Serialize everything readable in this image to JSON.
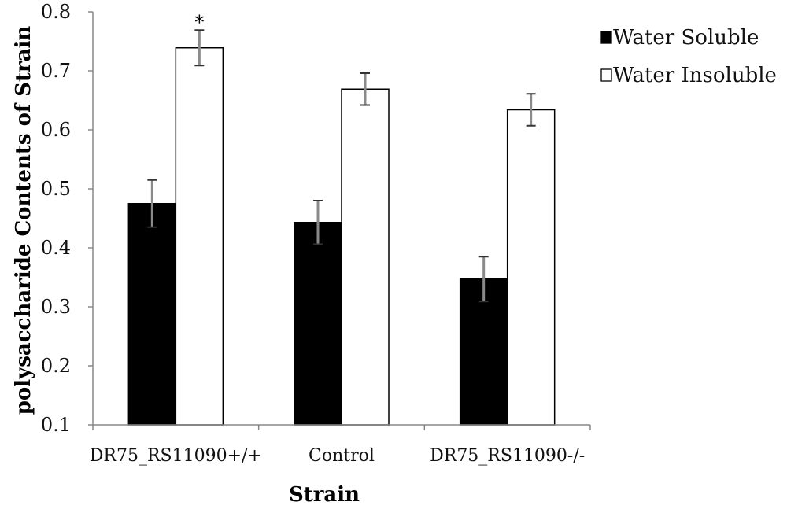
{
  "chart_data": {
    "type": "bar",
    "title": "",
    "xlabel": "Strain",
    "ylabel": "polysaccharide Contents of Strain",
    "ylim": [
      0.1,
      0.8
    ],
    "yticks": [
      "0.1",
      "0.2",
      "0.3",
      "0.4",
      "0.5",
      "0.6",
      "0.7",
      "0.8"
    ],
    "categories": [
      "DR75_RS11090+/+",
      "Control",
      "DR75_RS11090-/-"
    ],
    "series": [
      {
        "name": "Water Soluble",
        "color": "#000000",
        "values": [
          0.475,
          0.443,
          0.347
        ],
        "errors": [
          0.04,
          0.037,
          0.038
        ]
      },
      {
        "name": "Water Insoluble",
        "color": "#ffffff",
        "values": [
          0.739,
          0.669,
          0.634
        ],
        "errors": [
          0.03,
          0.027,
          0.027
        ]
      }
    ],
    "annotations": [
      {
        "text": "*",
        "series": "Water Insoluble",
        "category": "DR75_RS11090+/+"
      }
    ],
    "legend_position": "top-right",
    "grid": false
  }
}
